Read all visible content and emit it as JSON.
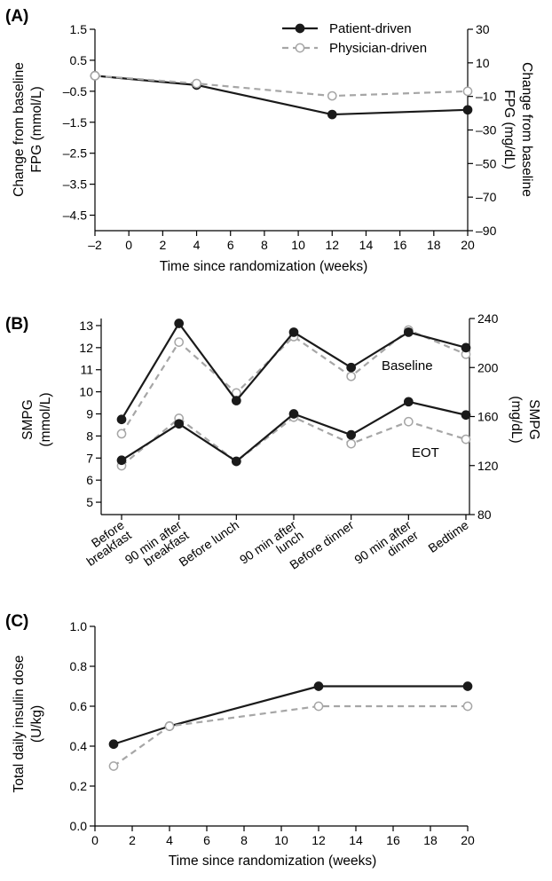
{
  "legend": {
    "items": [
      {
        "label": "Patient-driven",
        "color": "#1a1a1a",
        "style": "solid",
        "marker": "filled"
      },
      {
        "label": "Physician-driven",
        "color": "#a6a6a6",
        "style": "dashed",
        "marker": "open"
      }
    ]
  },
  "chart_data": [
    {
      "panel": "(A)",
      "type": "line",
      "xlabel": "Time since randomization (weeks)",
      "ylabel": [
        "Change from baseline",
        "FPG (mmol/L)"
      ],
      "ylabel_right": [
        "Change from baseline",
        "FPG (mg/dL)"
      ],
      "xlim": [
        -2,
        20
      ],
      "ylim": [
        -5,
        1.5
      ],
      "ylim_right": [
        -90,
        30
      ],
      "xticks": [
        "–2",
        "0",
        "2",
        "4",
        "6",
        "8",
        "10",
        "12",
        "14",
        "16",
        "18",
        "20"
      ],
      "yticks": [
        "1.5",
        "0.5",
        "–0.5",
        "–1.5",
        "–2.5",
        "–3.5",
        "–4.5"
      ],
      "yticks_right": [
        "30",
        "10",
        "–10",
        "–30",
        "–50",
        "–70",
        "–90"
      ],
      "series": [
        {
          "name": "Patient-driven",
          "x": [
            -2,
            4,
            12,
            20
          ],
          "values": [
            0.0,
            -0.3,
            -1.25,
            -1.1
          ]
        },
        {
          "name": "Physician-driven",
          "x": [
            -2,
            4,
            12,
            20
          ],
          "values": [
            0.0,
            -0.25,
            -0.65,
            -0.5
          ]
        }
      ]
    },
    {
      "panel": "(B)",
      "type": "line",
      "ylabel": [
        "SMPG",
        "(mmol/L)"
      ],
      "ylabel_right": [
        "SMPG",
        "(mg/dL)"
      ],
      "ylim": [
        4.44,
        13.32
      ],
      "ylim_right": [
        80,
        240
      ],
      "yticks": [
        "13",
        "12",
        "11",
        "10",
        "9",
        "8",
        "7",
        "6",
        "5"
      ],
      "yticks_right": [
        "240",
        "200",
        "160",
        "120",
        "80"
      ],
      "categories": [
        [
          "Before",
          "breakfast"
        ],
        [
          "90 min after",
          "breakfast"
        ],
        [
          "Before lunch"
        ],
        [
          "90 min after",
          "lunch"
        ],
        [
          "Before dinner"
        ],
        [
          "90 min after",
          "dinner"
        ],
        [
          "Bedtime"
        ]
      ],
      "annotations": [
        "Baseline",
        "EOT"
      ],
      "series": [
        {
          "name": "Patient-driven Baseline",
          "values": [
            8.75,
            13.1,
            9.6,
            12.7,
            11.1,
            12.7,
            12.0
          ]
        },
        {
          "name": "Physician-driven Baseline",
          "values": [
            8.1,
            12.25,
            9.95,
            12.5,
            10.7,
            12.8,
            11.7
          ]
        },
        {
          "name": "Patient-driven EOT",
          "values": [
            6.9,
            8.55,
            6.85,
            9.0,
            8.05,
            9.55,
            8.95
          ]
        },
        {
          "name": "Physician-driven EOT",
          "values": [
            6.65,
            8.8,
            6.85,
            8.85,
            7.65,
            8.65,
            7.85
          ]
        }
      ]
    },
    {
      "panel": "(C)",
      "type": "line",
      "xlabel": "Time since randomization (weeks)",
      "ylabel": [
        "Total daily insulin dose",
        "(U/kg)"
      ],
      "xlim": [
        0,
        20
      ],
      "ylim": [
        0,
        1.0
      ],
      "xticks": [
        "0",
        "2",
        "4",
        "6",
        "8",
        "10",
        "12",
        "14",
        "16",
        "18",
        "20"
      ],
      "yticks": [
        "1.0",
        "0.8",
        "0.6",
        "0.4",
        "0.2",
        "0.0"
      ],
      "series": [
        {
          "name": "Patient-driven",
          "x": [
            1,
            4,
            12,
            20
          ],
          "values": [
            0.41,
            0.5,
            0.7,
            0.7
          ]
        },
        {
          "name": "Physician-driven",
          "x": [
            1,
            4,
            12,
            20
          ],
          "values": [
            0.3,
            0.5,
            0.6,
            0.6
          ]
        }
      ]
    }
  ]
}
